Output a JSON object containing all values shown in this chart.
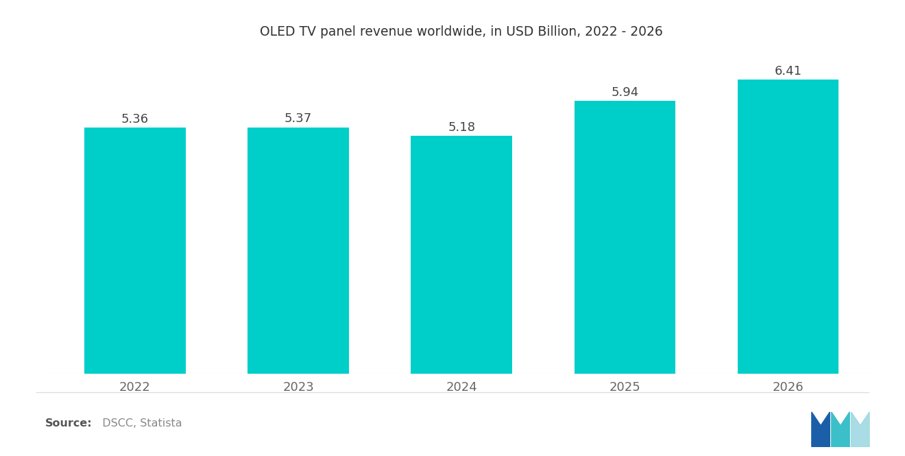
{
  "title": "OLED TV panel revenue worldwide, in USD Billion, 2022 - 2026",
  "categories": [
    "2022",
    "2023",
    "2024",
    "2025",
    "2026"
  ],
  "values": [
    5.36,
    5.37,
    5.18,
    5.94,
    6.41
  ],
  "bar_color": "#00CEC9",
  "value_labels": [
    "5.36",
    "5.37",
    "5.18",
    "5.94",
    "6.41"
  ],
  "source_bold": "Source:",
  "source_text": "  DSCC, Statista",
  "background_color": "#ffffff",
  "title_fontsize": 13.5,
  "label_fontsize": 13,
  "tick_fontsize": 13,
  "source_fontsize": 11.5,
  "ylim": [
    0,
    6.95
  ],
  "bar_width": 0.62
}
